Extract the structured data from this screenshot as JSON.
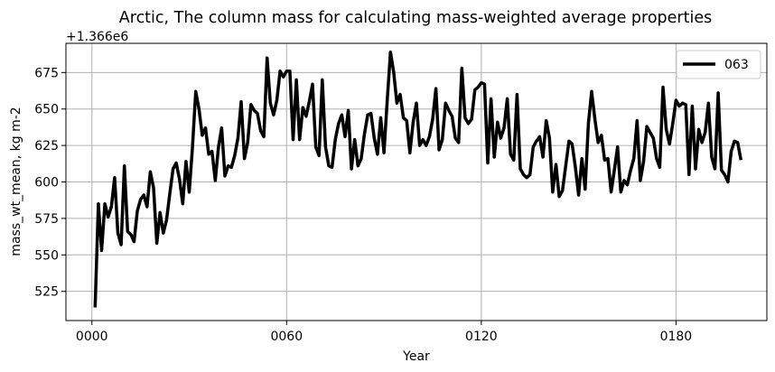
{
  "chart_data": {
    "type": "line",
    "title": "Arctic, The column mass for calculating mass-weighted average properties",
    "xlabel": "Year",
    "ylabel": "mass_wt_mean, kg m-2",
    "y_offset_label": "+1.366e6",
    "xlim": [
      -8,
      208
    ],
    "ylim": [
      505,
      695
    ],
    "x_ticks": [
      0,
      60,
      120,
      180
    ],
    "x_tick_labels": [
      "0000",
      "0060",
      "0120",
      "0180"
    ],
    "y_ticks": [
      525,
      550,
      575,
      600,
      625,
      650,
      675
    ],
    "y_tick_labels": [
      "525",
      "550",
      "575",
      "600",
      "625",
      "650",
      "675"
    ],
    "grid": true,
    "legend_position": "top-right",
    "series": [
      {
        "name": "063",
        "color": "#000000",
        "x": [
          1,
          2,
          3,
          4,
          5,
          6,
          7,
          8,
          9,
          10,
          11,
          12,
          13,
          14,
          15,
          16,
          17,
          18,
          19,
          20,
          21,
          22,
          23,
          24,
          25,
          26,
          27,
          28,
          29,
          30,
          31,
          32,
          33,
          34,
          35,
          36,
          37,
          38,
          39,
          40,
          41,
          42,
          43,
          44,
          45,
          46,
          47,
          48,
          49,
          50,
          51,
          52,
          53,
          54,
          55,
          56,
          57,
          58,
          59,
          60,
          61,
          62,
          63,
          64,
          65,
          66,
          67,
          68,
          69,
          70,
          71,
          72,
          73,
          74,
          75,
          76,
          77,
          78,
          79,
          80,
          81,
          82,
          83,
          84,
          85,
          86,
          87,
          88,
          89,
          90,
          91,
          92,
          93,
          94,
          95,
          96,
          97,
          98,
          99,
          100,
          101,
          102,
          103,
          104,
          105,
          106,
          107,
          108,
          109,
          110,
          111,
          112,
          113,
          114,
          115,
          116,
          117,
          118,
          119,
          120,
          121,
          122,
          123,
          124,
          125,
          126,
          127,
          128,
          129,
          130,
          131,
          132,
          133,
          134,
          135,
          136,
          137,
          138,
          139,
          140,
          141,
          142,
          143,
          144,
          145,
          146,
          147,
          148,
          149,
          150,
          151,
          152,
          153,
          154,
          155,
          156,
          157,
          158,
          159,
          160,
          161,
          162,
          163,
          164,
          165,
          166,
          167,
          168,
          169,
          170,
          171,
          172,
          173,
          174,
          175,
          176,
          177,
          178,
          179,
          180,
          181,
          182,
          183,
          184,
          185,
          186,
          187,
          188,
          189,
          190,
          191,
          192,
          193,
          194,
          195,
          196,
          197,
          198,
          199,
          200
        ],
        "y": [
          514,
          585,
          553,
          585,
          576,
          583,
          603,
          565,
          557,
          611,
          566,
          564,
          559,
          580,
          588,
          591,
          583,
          607,
          596,
          558,
          579,
          565,
          574,
          592,
          609,
          613,
          602,
          585,
          614,
          593,
          624,
          662,
          650,
          632,
          637,
          619,
          621,
          601,
          624,
          637,
          604,
          611,
          610,
          618,
          630,
          655,
          616,
          627,
          653,
          649,
          647,
          635,
          631,
          685,
          654,
          646,
          656,
          676,
          672,
          676,
          676,
          629,
          670,
          629,
          651,
          645,
          655,
          667,
          624,
          618,
          670,
          624,
          611,
          610,
          629,
          640,
          646,
          631,
          649,
          609,
          629,
          611,
          616,
          633,
          646,
          647,
          630,
          619,
          644,
          620,
          656,
          689,
          675,
          654,
          660,
          644,
          642,
          620,
          641,
          654,
          625,
          629,
          625,
          631,
          643,
          664,
          622,
          629,
          654,
          649,
          645,
          630,
          627,
          678,
          644,
          640,
          643,
          663,
          665,
          668,
          667,
          613,
          657,
          617,
          641,
          630,
          637,
          657,
          619,
          615,
          660,
          609,
          605,
          603,
          605,
          624,
          628,
          631,
          617,
          642,
          630,
          593,
          612,
          590,
          594,
          611,
          628,
          626,
          610,
          591,
          616,
          595,
          640,
          662,
          643,
          627,
          632,
          615,
          616,
          593,
          608,
          624,
          593,
          601,
          598,
          608,
          616,
          642,
          601,
          614,
          638,
          634,
          630,
          616,
          610,
          665,
          636,
          626,
          640,
          656,
          652,
          654,
          653,
          605,
          652,
          609,
          636,
          627,
          634,
          654,
          617,
          609,
          661,
          608,
          605,
          600,
          621,
          628,
          627,
          615
        ]
      }
    ]
  }
}
